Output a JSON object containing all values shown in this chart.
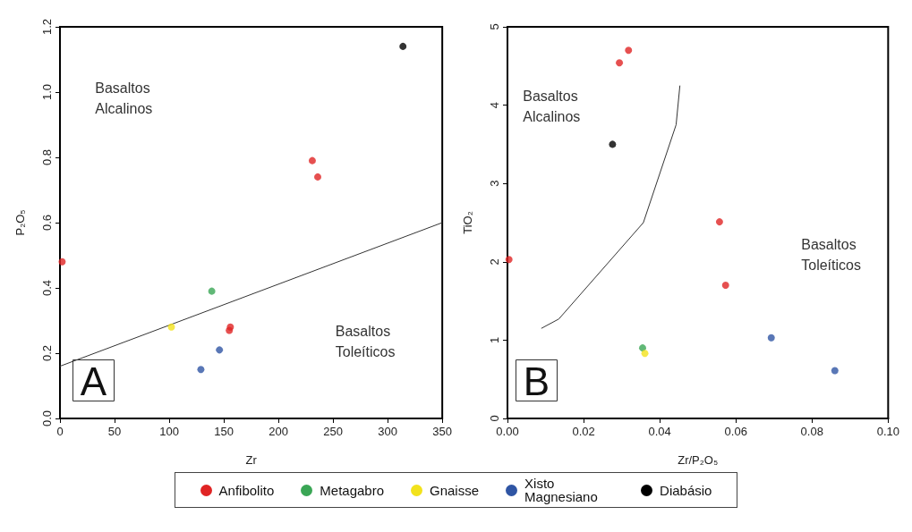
{
  "chart_data": [
    {
      "type": "scatter",
      "xlabel": "Zr",
      "ylabel": "P₂O₅",
      "xlim": [
        0,
        350
      ],
      "ylim": [
        0,
        1.2
      ],
      "xticks": [
        0,
        50,
        100,
        150,
        200,
        250,
        300,
        350
      ],
      "yticks": [
        {
          "value": 0,
          "label": "0.0"
        },
        {
          "value": 0.2,
          "label": "0.2"
        },
        {
          "value": 0.4,
          "label": "0.4"
        },
        {
          "value": 0.6,
          "label": "0.6"
        },
        {
          "value": 0.8,
          "label": "0.8"
        },
        {
          "value": 1,
          "label": "1.0"
        },
        {
          "value": 1.2,
          "label": "1.2"
        }
      ],
      "grid": false,
      "legend": "bottom",
      "marker": "circle",
      "series": [
        {
          "name": "Anfibolito",
          "color": "#e02424",
          "x": [
            2,
            231,
            236,
            155,
            156
          ],
          "values": [
            0.48,
            0.79,
            0.74,
            0.27,
            0.28
          ]
        },
        {
          "name": "Metagabro",
          "color": "#3aa655",
          "x": [
            139
          ],
          "values": [
            0.39
          ]
        },
        {
          "name": "Gnaisse",
          "color": "#f2e21c",
          "x": [
            102
          ],
          "values": [
            0.28
          ]
        },
        {
          "name": "Xisto Magnesiano",
          "color": "#2f55a4",
          "x": [
            129,
            146
          ],
          "values": [
            0.15,
            0.21
          ]
        },
        {
          "name": "Diabásio",
          "color": "#000000",
          "x": [
            314
          ],
          "values": [
            1.14
          ]
        },
        {
          "type": "line",
          "marker": "none",
          "color": "#333333",
          "x": [
            0,
            350
          ],
          "values": [
            0.16,
            0.6
          ]
        }
      ],
      "annotations": [
        "Basaltos\nAlcalinos",
        "Basaltos\nToleíticos",
        "A"
      ]
    },
    {
      "type": "scatter",
      "xlabel": "Zr/P₂O₅",
      "ylabel": "TiO₂",
      "xlim": [
        0,
        0.1
      ],
      "ylim": [
        0,
        5
      ],
      "xticks": [
        {
          "value": 0,
          "label": "0.00"
        },
        {
          "value": 0.02,
          "label": "0.02"
        },
        {
          "value": 0.04,
          "label": "0.04"
        },
        {
          "value": 0.06,
          "label": "0.06"
        },
        {
          "value": 0.08,
          "label": "0.08"
        },
        {
          "value": 0.1,
          "label": "0.10"
        }
      ],
      "yticks": [
        0,
        1,
        2,
        3,
        4,
        5
      ],
      "grid": false,
      "marker": "circle",
      "series": [
        {
          "name": "Anfibolito",
          "color": "#e02424",
          "x": [
            0.0004,
            0.0294,
            0.0318,
            0.0557,
            0.0573
          ],
          "values": [
            2.03,
            4.54,
            4.7,
            2.51,
            1.7
          ]
        },
        {
          "name": "Metagabro",
          "color": "#3aa655",
          "x": [
            0.0355
          ],
          "values": [
            0.9
          ]
        },
        {
          "name": "Gnaisse",
          "color": "#f2e21c",
          "x": [
            0.0361
          ],
          "values": [
            0.83
          ]
        },
        {
          "name": "Xisto Magnesiano",
          "color": "#2f55a4",
          "x": [
            0.0693,
            0.086
          ],
          "values": [
            1.03,
            0.61
          ]
        },
        {
          "name": "Diabásio",
          "color": "#000000",
          "x": [
            0.0276
          ],
          "values": [
            3.5
          ]
        },
        {
          "type": "line",
          "marker": "none",
          "color": "#333333",
          "x": [
            0.0089,
            0.0135,
            0.0357,
            0.0443,
            0.0453
          ],
          "values": [
            1.15,
            1.27,
            2.5,
            3.75,
            4.25
          ]
        }
      ],
      "annotations": [
        "Basaltos\nAlcalinos",
        "Basaltos\nToleíticos",
        "B"
      ]
    }
  ]
}
